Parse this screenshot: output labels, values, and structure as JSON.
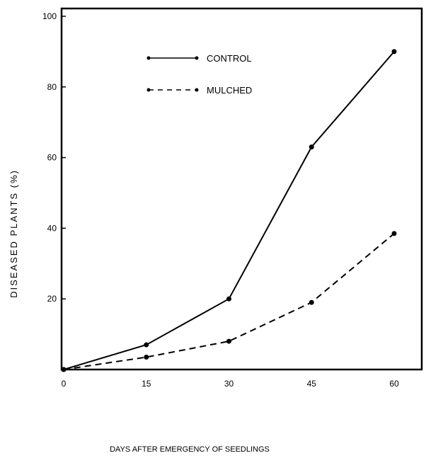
{
  "chart_data": {
    "type": "line",
    "title": "",
    "xlabel": "DAYS  AFTER EMERGENCY OF SEEDLINGS",
    "ylabel": "DISEASED PLANTS (%)",
    "xlim": [
      0,
      60
    ],
    "ylim": [
      0,
      100
    ],
    "x": [
      0,
      15,
      30,
      45,
      60
    ],
    "xticks": [
      "0",
      "15",
      "30",
      "45",
      "60"
    ],
    "yticks": [
      "20",
      "40",
      "60",
      "80",
      "100"
    ],
    "ytick_values": [
      20,
      40,
      60,
      80,
      100
    ],
    "grid": false,
    "legend_position": "top-center",
    "series": [
      {
        "name": "CONTROL",
        "style": "solid",
        "values": [
          0,
          7,
          20,
          63,
          90
        ]
      },
      {
        "name": "MULCHED",
        "style": "dashed",
        "values": [
          0,
          3.5,
          8,
          19,
          38.5
        ]
      }
    ],
    "color": "#000000"
  }
}
